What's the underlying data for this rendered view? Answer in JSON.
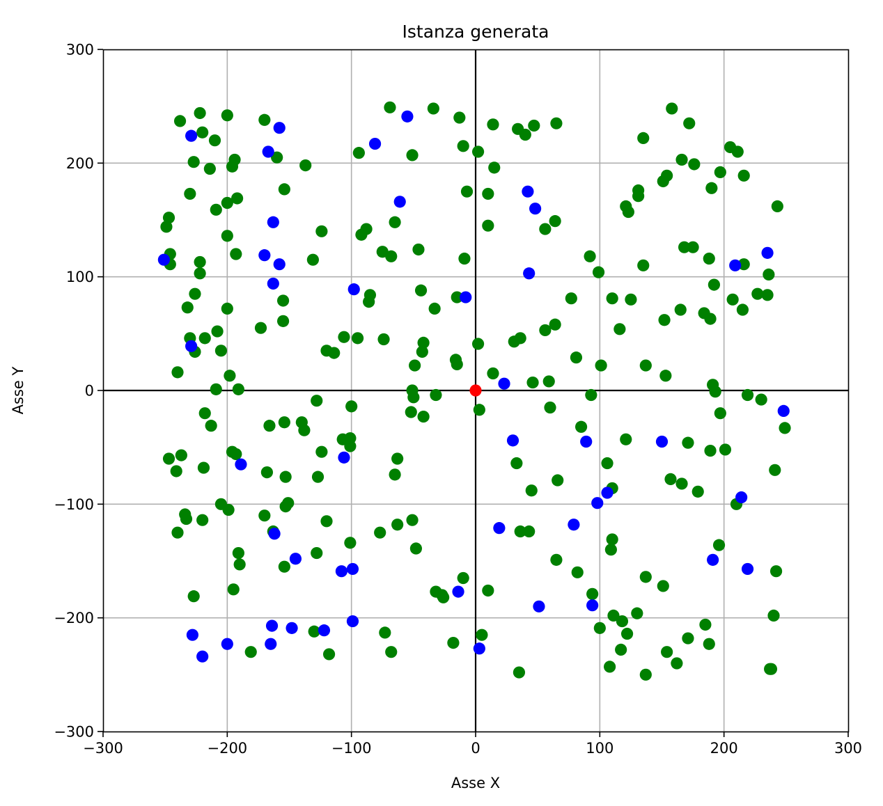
{
  "chart_data": {
    "type": "scatter",
    "title": "Istanza generata",
    "xlabel": "Asse X",
    "ylabel": "Asse Y",
    "xlim": [
      -300,
      300
    ],
    "ylim": [
      -300,
      300
    ],
    "xticks": [
      -300,
      -200,
      -100,
      0,
      100,
      200,
      300
    ],
    "yticks": [
      -300,
      -200,
      -100,
      0,
      100,
      200,
      300
    ],
    "xtick_labels": [
      "−300",
      "−200",
      "−100",
      "0",
      "100",
      "200",
      "300"
    ],
    "ytick_labels": [
      "−300",
      "−200",
      "−100",
      "0",
      "100",
      "200",
      "300"
    ],
    "grid": true,
    "legend": "none",
    "series": [
      {
        "color": "#008000",
        "points": [
          [
            -238,
            237
          ],
          [
            -222,
            244
          ],
          [
            -220,
            227
          ],
          [
            -210,
            220
          ],
          [
            -200,
            242
          ],
          [
            -170,
            238
          ],
          [
            -227,
            201
          ],
          [
            -214,
            195
          ],
          [
            -194,
            203
          ],
          [
            -196,
            197
          ],
          [
            -160,
            205
          ],
          [
            -230,
            173
          ],
          [
            -209,
            159
          ],
          [
            -200,
            165
          ],
          [
            -192,
            169
          ],
          [
            -154,
            177
          ],
          [
            -249,
            144
          ],
          [
            -247,
            152
          ],
          [
            -246,
            120
          ],
          [
            -246,
            111
          ],
          [
            -222,
            113
          ],
          [
            -222,
            103
          ],
          [
            -200,
            136
          ],
          [
            -193,
            120
          ],
          [
            -226,
            85
          ],
          [
            -232,
            73
          ],
          [
            -200,
            72
          ],
          [
            -155,
            79
          ],
          [
            -155,
            61
          ],
          [
            -173,
            55
          ],
          [
            -230,
            46
          ],
          [
            -218,
            46
          ],
          [
            -208,
            52
          ],
          [
            -205,
            35
          ],
          [
            -226,
            34
          ],
          [
            -240,
            16
          ],
          [
            -198,
            13
          ],
          [
            -209,
            1
          ],
          [
            -191,
            1
          ],
          [
            -218,
            -20
          ],
          [
            -213,
            -31
          ],
          [
            -247,
            -60
          ],
          [
            -237,
            -57
          ],
          [
            -241,
            -71
          ],
          [
            -219,
            -68
          ],
          [
            -196,
            -54
          ],
          [
            -193,
            -56
          ],
          [
            -166,
            -31
          ],
          [
            -154,
            -28
          ],
          [
            -168,
            -72
          ],
          [
            -153,
            -76
          ],
          [
            -234,
            -109
          ],
          [
            -233,
            -113
          ],
          [
            -220,
            -114
          ],
          [
            -205,
            -100
          ],
          [
            -199,
            -105
          ],
          [
            -240,
            -125
          ],
          [
            -170,
            -110
          ],
          [
            -163,
            -124
          ],
          [
            -153,
            -102
          ],
          [
            -151,
            -99
          ],
          [
            -191,
            -143
          ],
          [
            -190,
            -153
          ],
          [
            -195,
            -175
          ],
          [
            -154,
            -155
          ],
          [
            -227,
            -181
          ],
          [
            -181,
            -230
          ],
          [
            -137,
            198
          ],
          [
            -131,
            115
          ],
          [
            -124,
            140
          ],
          [
            -94,
            209
          ],
          [
            -92,
            137
          ],
          [
            -88,
            142
          ],
          [
            -69,
            249
          ],
          [
            -34,
            248
          ],
          [
            -13,
            240
          ],
          [
            -51,
            207
          ],
          [
            -65,
            148
          ],
          [
            -75,
            122
          ],
          [
            -68,
            118
          ],
          [
            -46,
            124
          ],
          [
            -10,
            215
          ],
          [
            -7,
            175
          ],
          [
            -9,
            116
          ],
          [
            -44,
            88
          ],
          [
            -85,
            84
          ],
          [
            -86,
            78
          ],
          [
            -33,
            72
          ],
          [
            -15,
            82
          ],
          [
            -106,
            47
          ],
          [
            -95,
            46
          ],
          [
            -120,
            35
          ],
          [
            -114,
            33
          ],
          [
            -74,
            45
          ],
          [
            -42,
            42
          ],
          [
            -43,
            34
          ],
          [
            -49,
            22
          ],
          [
            -16,
            27
          ],
          [
            -15,
            23
          ],
          [
            -128,
            -9
          ],
          [
            -140,
            -28
          ],
          [
            -138,
            -35
          ],
          [
            -100,
            -14
          ],
          [
            -51,
            0
          ],
          [
            -50,
            -6
          ],
          [
            -32,
            -4
          ],
          [
            -52,
            -19
          ],
          [
            -42,
            -23
          ],
          [
            -124,
            -54
          ],
          [
            -127,
            -76
          ],
          [
            -107,
            -43
          ],
          [
            -101,
            -42
          ],
          [
            -101,
            -49
          ],
          [
            -63,
            -60
          ],
          [
            -65,
            -74
          ],
          [
            -120,
            -115
          ],
          [
            -101,
            -134
          ],
          [
            -77,
            -125
          ],
          [
            -63,
            -118
          ],
          [
            -51,
            -114
          ],
          [
            -48,
            -139
          ],
          [
            -128,
            -143
          ],
          [
            -32,
            -177
          ],
          [
            -27,
            -180
          ],
          [
            -26,
            -182
          ],
          [
            -10,
            -165
          ],
          [
            -130,
            -212
          ],
          [
            -118,
            -232
          ],
          [
            -73,
            -213
          ],
          [
            -68,
            -230
          ],
          [
            -18,
            -222
          ],
          [
            2,
            210
          ],
          [
            14,
            234
          ],
          [
            15,
            196
          ],
          [
            10,
            173
          ],
          [
            10,
            145
          ],
          [
            34,
            230
          ],
          [
            40,
            225
          ],
          [
            47,
            233
          ],
          [
            65,
            235
          ],
          [
            56,
            142
          ],
          [
            64,
            149
          ],
          [
            2,
            41
          ],
          [
            14,
            15
          ],
          [
            31,
            43
          ],
          [
            36,
            46
          ],
          [
            56,
            53
          ],
          [
            64,
            58
          ],
          [
            46,
            7
          ],
          [
            59,
            8
          ],
          [
            77,
            81
          ],
          [
            81,
            29
          ],
          [
            3,
            -17
          ],
          [
            33,
            -64
          ],
          [
            60,
            -15
          ],
          [
            36,
            -124
          ],
          [
            43,
            -124
          ],
          [
            45,
            -88
          ],
          [
            65,
            -149
          ],
          [
            66,
            -79
          ],
          [
            10,
            -176
          ],
          [
            5,
            -215
          ],
          [
            35,
            -248
          ],
          [
            85,
            -32
          ],
          [
            82,
            -160
          ],
          [
            93,
            -4
          ],
          [
            94,
            -179
          ],
          [
            92,
            118
          ],
          [
            99,
            104
          ],
          [
            100,
            -209
          ],
          [
            101,
            22
          ],
          [
            106,
            -64
          ],
          [
            108,
            -243
          ],
          [
            109,
            -140
          ],
          [
            110,
            -131
          ],
          [
            110,
            -86
          ],
          [
            110,
            81
          ],
          [
            111,
            -198
          ],
          [
            116,
            54
          ],
          [
            117,
            -228
          ],
          [
            118,
            -203
          ],
          [
            121,
            162
          ],
          [
            121,
            -43
          ],
          [
            122,
            -214
          ],
          [
            123,
            157
          ],
          [
            125,
            80
          ],
          [
            130,
            -196
          ],
          [
            131,
            176
          ],
          [
            131,
            171
          ],
          [
            135,
            222
          ],
          [
            135,
            110
          ],
          [
            137,
            22
          ],
          [
            137,
            -164
          ],
          [
            137,
            -250
          ],
          [
            151,
            -172
          ],
          [
            151,
            184
          ],
          [
            152,
            62
          ],
          [
            153,
            13
          ],
          [
            154,
            189
          ],
          [
            154,
            -230
          ],
          [
            157,
            -78
          ],
          [
            158,
            248
          ],
          [
            162,
            -240
          ],
          [
            165,
            71
          ],
          [
            166,
            -82
          ],
          [
            166,
            203
          ],
          [
            168,
            126
          ],
          [
            171,
            -218
          ],
          [
            171,
            -46
          ],
          [
            172,
            235
          ],
          [
            175,
            126
          ],
          [
            176,
            199
          ],
          [
            179,
            -89
          ],
          [
            184,
            68
          ],
          [
            185,
            -206
          ],
          [
            188,
            116
          ],
          [
            188,
            -223
          ],
          [
            189,
            63
          ],
          [
            189,
            -53
          ],
          [
            190,
            178
          ],
          [
            191,
            5
          ],
          [
            192,
            93
          ],
          [
            193,
            -1
          ],
          [
            196,
            -136
          ],
          [
            197,
            -20
          ],
          [
            197,
            192
          ],
          [
            201,
            -52
          ],
          [
            205,
            214
          ],
          [
            207,
            80
          ],
          [
            210,
            -100
          ],
          [
            211,
            210
          ],
          [
            215,
            71
          ],
          [
            216,
            111
          ],
          [
            216,
            189
          ],
          [
            219,
            -4
          ],
          [
            227,
            85
          ],
          [
            230,
            -8
          ],
          [
            235,
            84
          ],
          [
            236,
            102
          ],
          [
            237,
            -245
          ],
          [
            238,
            -245
          ],
          [
            240,
            -198
          ],
          [
            241,
            -70
          ],
          [
            242,
            -159
          ],
          [
            243,
            162
          ],
          [
            249,
            -33
          ]
        ]
      },
      {
        "color": "#0000ff",
        "points": [
          [
            -229,
            224
          ],
          [
            -158,
            231
          ],
          [
            -167,
            210
          ],
          [
            -163,
            148
          ],
          [
            -251,
            115
          ],
          [
            -170,
            119
          ],
          [
            -158,
            111
          ],
          [
            -163,
            94
          ],
          [
            -229,
            39
          ],
          [
            -189,
            -65
          ],
          [
            -162,
            -126
          ],
          [
            -145,
            -148
          ],
          [
            -164,
            -207
          ],
          [
            -165,
            -223
          ],
          [
            -148,
            -209
          ],
          [
            -200,
            -223
          ],
          [
            -228,
            -215
          ],
          [
            -220,
            -234
          ],
          [
            -55,
            241
          ],
          [
            -81,
            217
          ],
          [
            -61,
            166
          ],
          [
            -98,
            89
          ],
          [
            -8,
            82
          ],
          [
            -106,
            -59
          ],
          [
            -108,
            -159
          ],
          [
            -99,
            -157
          ],
          [
            -99,
            -203
          ],
          [
            -122,
            -211
          ],
          [
            -14,
            -177
          ],
          [
            42,
            175
          ],
          [
            48,
            160
          ],
          [
            43,
            103
          ],
          [
            23,
            6
          ],
          [
            30,
            -44
          ],
          [
            19,
            -121
          ],
          [
            51,
            -190
          ],
          [
            3,
            -227
          ],
          [
            79,
            -118
          ],
          [
            89,
            -45
          ],
          [
            94,
            -189
          ],
          [
            98,
            -99
          ],
          [
            106,
            -90
          ],
          [
            150,
            -45
          ],
          [
            209,
            110
          ],
          [
            235,
            121
          ],
          [
            248,
            -18
          ],
          [
            214,
            -94
          ],
          [
            219,
            -157
          ],
          [
            191,
            -149
          ]
        ]
      },
      {
        "color": "#ff0000",
        "points": [
          [
            0,
            0
          ]
        ]
      }
    ]
  }
}
